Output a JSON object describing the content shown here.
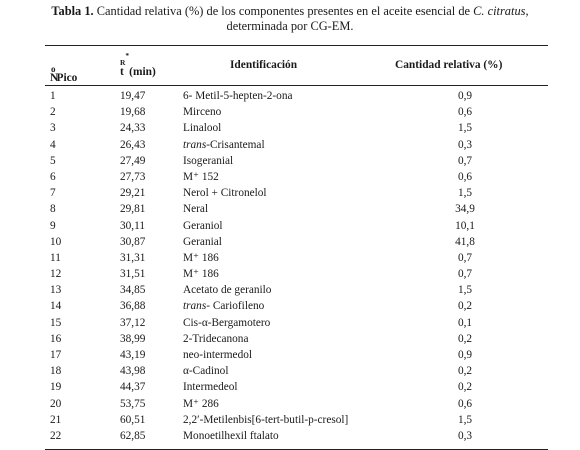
{
  "caption": {
    "label": "Tabla 1.",
    "text_before": " Cantidad relativa (%) de los componentes presentes en el aceite esencial de ",
    "species": "C. citratus",
    "text_after": ",",
    "line2": "determinada por CG-EM."
  },
  "table": {
    "headers": {
      "pico_n": "N",
      "pico_sub": "o",
      "pico_word": "Pico",
      "tr_t": "t",
      "tr_sub": "R",
      "tr_sup": "*",
      "tr_unit": "(min)",
      "identificacion": "Identificación",
      "cantidad": "Cantidad relativa (%)"
    },
    "rows": [
      {
        "n": "1",
        "tr": "19,47",
        "prefix": "",
        "name": "6- Metil-5-hepten-2-ona",
        "q": "0,9"
      },
      {
        "n": "2",
        "tr": "19,68",
        "prefix": "",
        "name": "Mirceno",
        "q": "0,6"
      },
      {
        "n": "3",
        "tr": "24,33",
        "prefix": "",
        "name": "Linalool",
        "q": "1,5"
      },
      {
        "n": "4",
        "tr": "26,43",
        "prefix": "trans",
        "name": "-Crisantemal",
        "q": "0,3"
      },
      {
        "n": "5",
        "tr": "27,49",
        "prefix": "",
        "name": "Isogeranial",
        "q": "0,7"
      },
      {
        "n": "6",
        "tr": "27,73",
        "prefix": "",
        "name": "M⁺ 152",
        "q": "0,6"
      },
      {
        "n": "7",
        "tr": "29,21",
        "prefix": "",
        "name": "Nerol + Citronelol",
        "q": "1,5"
      },
      {
        "n": "8",
        "tr": "29,81",
        "prefix": "",
        "name": "Neral",
        "q": "34,9"
      },
      {
        "n": "9",
        "tr": "30,11",
        "prefix": "",
        "name": "Geraniol",
        "q": "10,1"
      },
      {
        "n": "10",
        "tr": "30,87",
        "prefix": "",
        "name": "Geranial",
        "q": "41,8"
      },
      {
        "n": "11",
        "tr": "31,31",
        "prefix": "",
        "name": "M⁺ 186",
        "q": "0,7"
      },
      {
        "n": "12",
        "tr": "31,51",
        "prefix": "",
        "name": "M⁺ 186",
        "q": "0,7"
      },
      {
        "n": "13",
        "tr": "34,85",
        "prefix": "",
        "name": "Acetato de geranilo",
        "q": "1,5"
      },
      {
        "n": "14",
        "tr": "36,88",
        "prefix": "trans",
        "name": "- Cariofileno",
        "q": "0,2"
      },
      {
        "n": "15",
        "tr": "37,12",
        "prefix": "",
        "name": "Cis-α-Bergamotero",
        "q": "0,1"
      },
      {
        "n": "16",
        "tr": "38,99",
        "prefix": "",
        "name": "2-Tridecanona",
        "q": "0,2"
      },
      {
        "n": "17",
        "tr": "43,19",
        "prefix": "",
        "name": "neo-intermedol",
        "q": "0,9"
      },
      {
        "n": "18",
        "tr": "43,98",
        "prefix": "",
        "name": "α-Cadinol",
        "q": "0,2"
      },
      {
        "n": "19",
        "tr": "44,37",
        "prefix": "",
        "name": "Intermedeol",
        "q": "0,2"
      },
      {
        "n": "20",
        "tr": "53,75",
        "prefix": "",
        "name": "M⁺ 286",
        "q": "0,6"
      },
      {
        "n": "21",
        "tr": "60,51",
        "prefix": "",
        "name": "2,2′-Metilenbis[6-tert-butil-p-cresol]",
        "q": "1,5"
      },
      {
        "n": "22",
        "tr": "62,85",
        "prefix": "",
        "name": "Monoetilhexil ftalato",
        "q": "0,3"
      }
    ]
  }
}
